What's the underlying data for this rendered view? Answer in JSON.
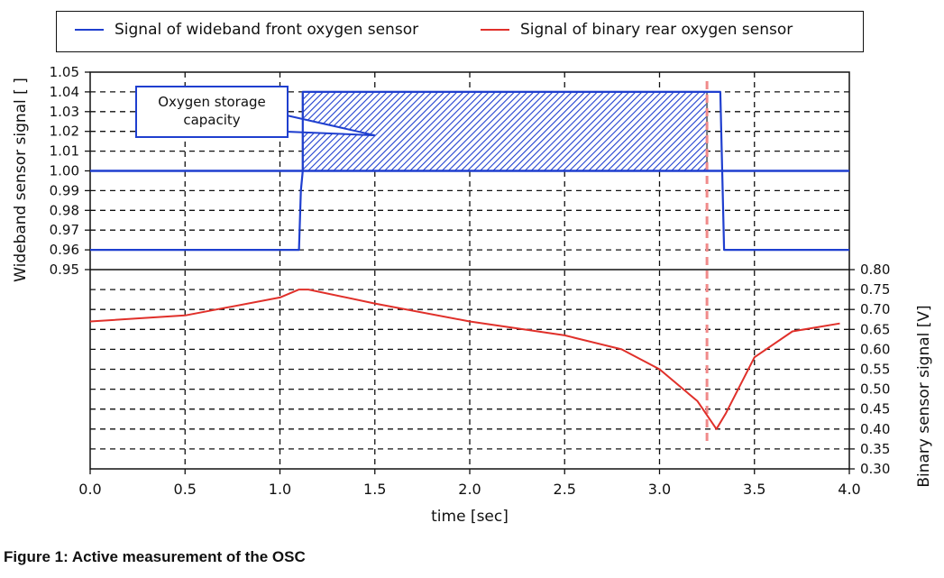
{
  "caption": "Figure 1: Active measurement of the OSC",
  "annotation": "Oxygen storage capacity",
  "colors": {
    "front": "#1f3fcf",
    "rear": "#e0302a",
    "marker": "#f08a8a",
    "hatch": "#1f3fcf"
  },
  "chart_data": {
    "type": "line",
    "xlabel": "time [sec]",
    "ylabel_left": "Wideband sensor signal [ ]",
    "ylabel_right": "Binary sensor signal [V]",
    "xlim": [
      0.0,
      4.0
    ],
    "x_ticks": [
      "0.0",
      "0.5",
      "1.0",
      "1.5",
      "2.0",
      "2.5",
      "3.0",
      "3.5",
      "4.0"
    ],
    "ylim_left": [
      0.95,
      1.05
    ],
    "y_ticks_left": [
      "0.95",
      "0.96",
      "0.97",
      "0.98",
      "0.99",
      "1.00",
      "1.01",
      "1.02",
      "1.03",
      "1.04",
      "1.05"
    ],
    "ylim_right": [
      0.3,
      0.8
    ],
    "y_ticks_right": [
      "0.30",
      "0.35",
      "0.40",
      "0.45",
      "0.50",
      "0.55",
      "0.60",
      "0.65",
      "0.70",
      "0.75",
      "0.80"
    ],
    "grid": true,
    "legend_placement": "top",
    "series": [
      {
        "name": "Signal of wideband front oxygen sensor",
        "axis": "left",
        "x": [
          0.0,
          1.1,
          1.11,
          1.12,
          1.12,
          3.25,
          3.25,
          3.32,
          3.33,
          3.34,
          4.0
        ],
        "y": [
          0.96,
          0.96,
          0.99,
          1.0,
          1.04,
          1.04,
          1.04,
          1.04,
          1.0,
          0.96,
          0.96
        ]
      },
      {
        "name": "Signal of binary rear oxygen sensor",
        "axis": "right",
        "x": [
          0.0,
          0.5,
          1.0,
          1.1,
          1.15,
          1.5,
          2.0,
          2.5,
          2.8,
          3.0,
          3.2,
          3.3,
          3.35,
          3.5,
          3.7,
          3.95
        ],
        "y": [
          0.67,
          0.685,
          0.73,
          0.75,
          0.75,
          0.715,
          0.67,
          0.635,
          0.6,
          0.55,
          0.47,
          0.4,
          0.44,
          0.58,
          0.645,
          0.665
        ]
      }
    ],
    "shaded_region": {
      "x": [
        1.12,
        3.25
      ],
      "y": [
        1.0,
        1.04
      ],
      "axis": "left",
      "pattern": "hatch"
    },
    "marker_line": {
      "x": 3.25,
      "style": "dashed"
    }
  }
}
